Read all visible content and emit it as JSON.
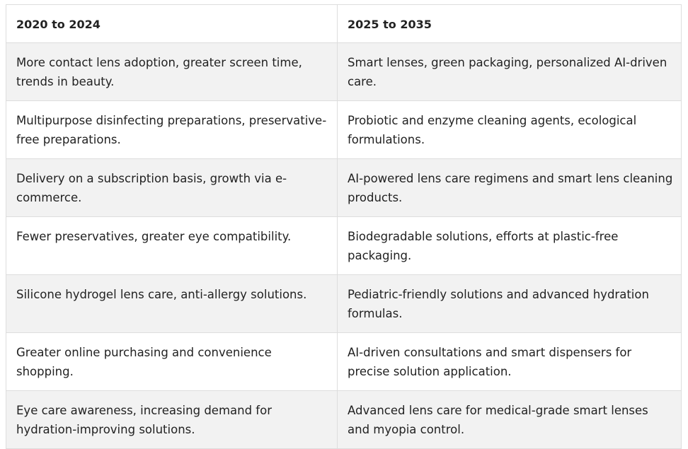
{
  "table": {
    "headers": [
      "2020 to 2024",
      "2025 to 2035"
    ],
    "rows": [
      [
        "More contact lens adoption, greater screen time, trends in beauty.",
        "Smart lenses, green packaging, personalized AI-driven care."
      ],
      [
        "Multipurpose disinfecting preparations, preservative-free preparations.",
        "Probiotic and enzyme cleaning agents, ecological formulations."
      ],
      [
        "Delivery on a subscription basis, growth via e-commerce.",
        "AI-powered lens care regimens and smart lens cleaning products."
      ],
      [
        "Fewer preservatives, greater eye compatibility.",
        "Biodegradable solutions, efforts at plastic-free packaging."
      ],
      [
        "Silicone hydrogel lens care, anti-allergy solutions.",
        "Pediatric-friendly solutions and advanced hydration formulas."
      ],
      [
        "Greater online purchasing and convenience shopping.",
        "AI-driven consultations and smart dispensers for precise solution application."
      ],
      [
        "Eye care awareness, increasing demand for hydration-improving solutions.",
        "Advanced lens care for medical-grade smart lenses and myopia control."
      ]
    ]
  }
}
